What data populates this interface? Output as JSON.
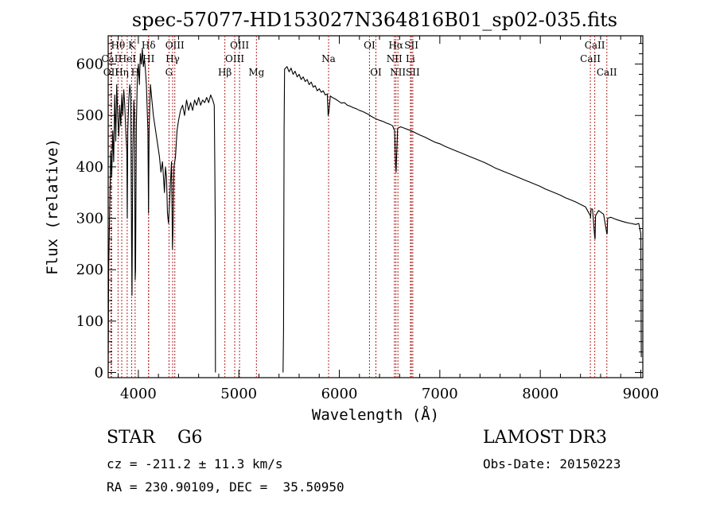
{
  "chart_data": {
    "type": "line",
    "title": "spec-57077-HD153027N364816B01_sp02-035.fits",
    "xlabel": "Wavelength (Å)",
    "ylabel": "Flux (relative)",
    "xlim": [
      3700,
      9020
    ],
    "ylim": [
      -10,
      655
    ],
    "x_ticks": [
      4000,
      5000,
      6000,
      7000,
      8000,
      9000
    ],
    "y_ticks": [
      0,
      100,
      200,
      300,
      400,
      500,
      600
    ],
    "series": [
      {
        "name": "flux",
        "segments": [
          [
            [
              3700,
              5
            ],
            [
              3705,
              200
            ],
            [
              3715,
              320
            ],
            [
              3725,
              430
            ],
            [
              3735,
              380
            ],
            [
              3745,
              470
            ],
            [
              3755,
              410
            ],
            [
              3765,
              540
            ],
            [
              3775,
              450
            ],
            [
              3785,
              560
            ],
            [
              3795,
              500
            ],
            [
              3805,
              460
            ],
            [
              3815,
              520
            ],
            [
              3825,
              480
            ],
            [
              3835,
              540
            ],
            [
              3845,
              500
            ],
            [
              3855,
              550
            ],
            [
              3865,
              520
            ],
            [
              3875,
              470
            ],
            [
              3885,
              430
            ],
            [
              3890,
              300
            ],
            [
              3895,
              470
            ],
            [
              3905,
              530
            ],
            [
              3915,
              560
            ],
            [
              3925,
              540
            ],
            [
              3933,
              250
            ],
            [
              3937,
              150
            ],
            [
              3945,
              420
            ],
            [
              3955,
              530
            ],
            [
              3962,
              500
            ],
            [
              3968,
              180
            ],
            [
              3972,
              200
            ],
            [
              3980,
              480
            ],
            [
              3990,
              570
            ],
            [
              4000,
              600
            ],
            [
              4010,
              560
            ],
            [
              4020,
              620
            ],
            [
              4030,
              600
            ],
            [
              4040,
              630
            ],
            [
              4050,
              595
            ],
            [
              4060,
              610
            ],
            [
              4070,
              590
            ],
            [
              4080,
              560
            ],
            [
              4095,
              470
            ],
            [
              4101,
              310
            ],
            [
              4107,
              470
            ],
            [
              4120,
              560
            ],
            [
              4135,
              530
            ],
            [
              4150,
              500
            ],
            [
              4165,
              480
            ],
            [
              4180,
              460
            ],
            [
              4195,
              440
            ],
            [
              4210,
              420
            ],
            [
              4225,
              390
            ],
            [
              4240,
              410
            ],
            [
              4250,
              380
            ],
            [
              4260,
              350
            ],
            [
              4270,
              400
            ],
            [
              4280,
              380
            ],
            [
              4290,
              310
            ],
            [
              4300,
              290
            ],
            [
              4310,
              330
            ],
            [
              4320,
              370
            ],
            [
              4330,
              410
            ],
            [
              4340,
              240
            ],
            [
              4345,
              280
            ],
            [
              4355,
              400
            ],
            [
              4370,
              420
            ],
            [
              4385,
              470
            ],
            [
              4400,
              490
            ],
            [
              4420,
              510
            ],
            [
              4440,
              520
            ],
            [
              4460,
              500
            ],
            [
              4480,
              530
            ],
            [
              4500,
              510
            ],
            [
              4520,
              525
            ],
            [
              4540,
              510
            ],
            [
              4560,
              530
            ],
            [
              4580,
              520
            ],
            [
              4600,
              535
            ],
            [
              4620,
              520
            ],
            [
              4640,
              530
            ],
            [
              4660,
              525
            ],
            [
              4680,
              535
            ],
            [
              4700,
              525
            ],
            [
              4720,
              540
            ],
            [
              4740,
              530
            ],
            [
              4755,
              520
            ],
            [
              4760,
              420
            ],
            [
              4765,
              300
            ],
            [
              4767,
              0
            ]
          ],
          [
            [
              5440,
              0
            ],
            [
              5445,
              80
            ],
            [
              5450,
              470
            ],
            [
              5455,
              590
            ],
            [
              5480,
              595
            ],
            [
              5500,
              585
            ],
            [
              5520,
              592
            ],
            [
              5540,
              580
            ],
            [
              5560,
              586
            ],
            [
              5580,
              575
            ],
            [
              5600,
              580
            ],
            [
              5620,
              570
            ],
            [
              5640,
              575
            ],
            [
              5660,
              566
            ],
            [
              5680,
              570
            ],
            [
              5700,
              560
            ],
            [
              5720,
              565
            ],
            [
              5740,
              555
            ],
            [
              5760,
              558
            ],
            [
              5780,
              548
            ],
            [
              5800,
              552
            ],
            [
              5820,
              545
            ],
            [
              5840,
              548
            ],
            [
              5860,
              540
            ],
            [
              5880,
              542
            ],
            [
              5889,
              500
            ],
            [
              5895,
              505
            ],
            [
              5910,
              538
            ],
            [
              5930,
              535
            ],
            [
              5960,
              532
            ],
            [
              5990,
              528
            ],
            [
              6020,
              524
            ],
            [
              6050,
              525
            ],
            [
              6080,
              520
            ],
            [
              6110,
              518
            ],
            [
              6140,
              515
            ],
            [
              6170,
              513
            ],
            [
              6200,
              510
            ],
            [
              6230,
              508
            ],
            [
              6260,
              505
            ],
            [
              6290,
              502
            ],
            [
              6320,
              498
            ],
            [
              6350,
              495
            ],
            [
              6380,
              492
            ],
            [
              6410,
              490
            ],
            [
              6440,
              488
            ],
            [
              6470,
              485
            ],
            [
              6500,
              483
            ],
            [
              6530,
              480
            ],
            [
              6550,
              470
            ],
            [
              6560,
              400
            ],
            [
              6565,
              390
            ],
            [
              6570,
              420
            ],
            [
              6580,
              475
            ],
            [
              6610,
              478
            ],
            [
              6650,
              475
            ],
            [
              6690,
              472
            ],
            [
              6720,
              470
            ],
            [
              6760,
              466
            ],
            [
              6800,
              462
            ],
            [
              6850,
              458
            ],
            [
              6900,
              453
            ],
            [
              6950,
              448
            ],
            [
              7000,
              445
            ],
            [
              7050,
              440
            ],
            [
              7100,
              436
            ],
            [
              7150,
              432
            ],
            [
              7200,
              428
            ],
            [
              7250,
              424
            ],
            [
              7300,
              420
            ],
            [
              7350,
              416
            ],
            [
              7400,
              412
            ],
            [
              7450,
              408
            ],
            [
              7500,
              403
            ],
            [
              7550,
              398
            ],
            [
              7600,
              394
            ],
            [
              7650,
              390
            ],
            [
              7700,
              386
            ],
            [
              7750,
              382
            ],
            [
              7800,
              378
            ],
            [
              7850,
              374
            ],
            [
              7900,
              370
            ],
            [
              7950,
              366
            ],
            [
              8000,
              362
            ],
            [
              8050,
              357
            ],
            [
              8100,
              353
            ],
            [
              8150,
              349
            ],
            [
              8200,
              345
            ],
            [
              8250,
              340
            ],
            [
              8300,
              336
            ],
            [
              8350,
              332
            ],
            [
              8400,
              327
            ],
            [
              8450,
              322
            ],
            [
              8498,
              305
            ],
            [
              8500,
              300
            ],
            [
              8505,
              318
            ],
            [
              8520,
              318
            ],
            [
              8542,
              262
            ],
            [
              8545,
              260
            ],
            [
              8550,
              305
            ],
            [
              8580,
              315
            ],
            [
              8630,
              308
            ],
            [
              8662,
              270
            ],
            [
              8665,
              270
            ],
            [
              8670,
              300
            ],
            [
              8700,
              302
            ],
            [
              8750,
              298
            ],
            [
              8800,
              295
            ],
            [
              8850,
              292
            ],
            [
              8900,
              290
            ],
            [
              8950,
              288
            ],
            [
              8980,
              290
            ],
            [
              8990,
              280
            ],
            [
              9000,
              270
            ],
            [
              9005,
              30
            ]
          ]
        ]
      }
    ],
    "lines": [
      {
        "label": "Hθ",
        "x": 3798,
        "row": 1
      },
      {
        "label": "OII",
        "x": 3727,
        "row": 3
      },
      {
        "label": "CaII",
        "x": 3734,
        "row": 2
      },
      {
        "label": "Hη",
        "x": 3835,
        "row": 3
      },
      {
        "label": "HeI",
        "x": 3889,
        "row": 2
      },
      {
        "label": "H",
        "x": 3968,
        "row": 3
      },
      {
        "label": "K",
        "x": 3934,
        "row": 1
      },
      {
        "label": "Hδ",
        "x": 4102,
        "row": 1
      },
      {
        "label": "HI",
        "x": 4102,
        "row": 2
      },
      {
        "label": "OIII",
        "x": 4363,
        "row": 1
      },
      {
        "label": "Hγ",
        "x": 4341,
        "row": 2
      },
      {
        "label": "G",
        "x": 4305,
        "row": 3
      },
      {
        "label": "Hβ",
        "x": 4861,
        "row": 3
      },
      {
        "label": "OIII",
        "x": 4959,
        "row": 2
      },
      {
        "label": "OIII",
        "x": 5007,
        "row": 1
      },
      {
        "label": "Mg",
        "x": 5175,
        "row": 3
      },
      {
        "label": "Na",
        "x": 5893,
        "row": 2
      },
      {
        "label": "OI",
        "x": 6300,
        "row": 1
      },
      {
        "label": "OI",
        "x": 6364,
        "row": 3
      },
      {
        "label": "Hα",
        "x": 6563,
        "row": 1
      },
      {
        "label": "NII",
        "x": 6548,
        "row": 2
      },
      {
        "label": "NII",
        "x": 6583,
        "row": 3
      },
      {
        "label": "SII",
        "x": 6717,
        "row": 1
      },
      {
        "label": "Li",
        "x": 6708,
        "row": 2
      },
      {
        "label": "SII",
        "x": 6731,
        "row": 3
      },
      {
        "label": "CaII",
        "x": 8498,
        "row": 2
      },
      {
        "label": "CaII",
        "x": 8542,
        "row": 1
      },
      {
        "label": "CaII",
        "x": 8662,
        "row": 3
      }
    ]
  },
  "info": {
    "class": "STAR    G6",
    "survey": "LAMOST DR3",
    "cz": "cz = -211.2 ± 11.3 km/s",
    "obs_date": "Obs-Date: 20150223",
    "coords": "RA = 230.90109, DEC =  35.50950"
  },
  "colors": {
    "spectrum": "#000000",
    "line_marker": "#b22222",
    "axes": "#000000"
  }
}
